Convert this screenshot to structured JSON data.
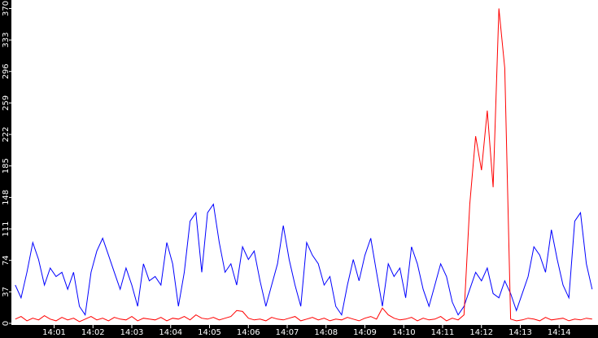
{
  "chart_data": {
    "type": "line",
    "x": [
      0,
      0.15,
      0.3,
      0.45,
      0.6,
      0.75,
      0.9,
      1.05,
      1.2,
      1.35,
      1.5,
      1.65,
      1.8,
      1.95,
      2.1,
      2.25,
      2.4,
      2.55,
      2.7,
      2.85,
      3.0,
      3.15,
      3.3,
      3.45,
      3.6,
      3.75,
      3.9,
      4.05,
      4.2,
      4.35,
      4.5,
      4.65,
      4.8,
      4.95,
      5.1,
      5.25,
      5.4,
      5.55,
      5.7,
      5.85,
      6.0,
      6.15,
      6.3,
      6.45,
      6.6,
      6.75,
      6.9,
      7.05,
      7.2,
      7.35,
      7.5,
      7.65,
      7.8,
      7.95,
      8.1,
      8.25,
      8.4,
      8.55,
      8.7,
      8.85,
      9.0,
      9.15,
      9.3,
      9.45,
      9.6,
      9.75,
      9.9,
      10.05,
      10.2,
      10.35,
      10.5,
      10.65,
      10.8,
      10.95,
      11.1,
      11.25,
      11.4,
      11.55,
      11.7,
      11.85,
      12.0,
      12.15,
      12.3,
      12.45,
      12.6,
      12.75,
      12.9,
      13.05,
      13.2,
      13.35,
      13.5,
      13.65,
      13.8,
      13.95,
      14.1,
      14.25,
      14.4,
      14.55,
      14.7,
      14.85
    ],
    "series": [
      {
        "color": "#0000ff",
        "values": [
          45,
          30,
          60,
          95,
          75,
          45,
          65,
          55,
          60,
          40,
          60,
          20,
          10,
          60,
          85,
          100,
          80,
          60,
          40,
          65,
          45,
          20,
          70,
          50,
          55,
          45,
          95,
          70,
          20,
          60,
          120,
          130,
          60,
          130,
          140,
          95,
          60,
          70,
          45,
          90,
          75,
          85,
          50,
          20,
          45,
          70,
          115,
          75,
          45,
          20,
          95,
          80,
          70,
          45,
          55,
          20,
          10,
          45,
          75,
          50,
          80,
          100,
          60,
          20,
          70,
          55,
          65,
          30,
          90,
          70,
          40,
          20,
          45,
          70,
          55,
          25,
          10,
          20,
          40,
          60,
          50,
          65,
          35,
          30,
          50,
          35,
          15,
          35,
          55,
          90,
          80,
          60,
          110,
          75,
          45,
          30,
          120,
          130,
          70,
          40
        ]
      },
      {
        "color": "#ff0000",
        "values": [
          5,
          8,
          3,
          6,
          4,
          9,
          5,
          3,
          7,
          4,
          6,
          2,
          5,
          8,
          4,
          6,
          3,
          7,
          5,
          4,
          8,
          3,
          6,
          5,
          4,
          7,
          3,
          6,
          5,
          8,
          4,
          10,
          6,
          5,
          7,
          4,
          6,
          8,
          15,
          14,
          6,
          4,
          5,
          3,
          7,
          5,
          4,
          6,
          8,
          3,
          5,
          7,
          4,
          6,
          3,
          5,
          4,
          7,
          5,
          3,
          6,
          8,
          5,
          18,
          10,
          6,
          4,
          5,
          7,
          3,
          6,
          4,
          5,
          8,
          3,
          6,
          4,
          10,
          140,
          220,
          180,
          250,
          160,
          370,
          300,
          5,
          3,
          4,
          6,
          5,
          3,
          7,
          4,
          5,
          6,
          3,
          5,
          4,
          6,
          5
        ]
      }
    ],
    "xlim": [
      -0.1,
      15
    ],
    "xticks": [
      {
        "value": 1,
        "label": "14:01"
      },
      {
        "value": 2,
        "label": "14:02"
      },
      {
        "value": 3,
        "label": "14:03"
      },
      {
        "value": 4,
        "label": "14:04"
      },
      {
        "value": 5,
        "label": "14:05"
      },
      {
        "value": 6,
        "label": "14:06"
      },
      {
        "value": 7,
        "label": "14:07"
      },
      {
        "value": 8,
        "label": "14:08"
      },
      {
        "value": 9,
        "label": "14:09"
      },
      {
        "value": 10,
        "label": "14:10"
      },
      {
        "value": 11,
        "label": "14:11"
      },
      {
        "value": 12,
        "label": "14:12"
      },
      {
        "value": 13,
        "label": "14:13"
      },
      {
        "value": 14,
        "label": "14:14"
      }
    ],
    "ylim": [
      0,
      380
    ],
    "yticks": [
      0,
      37,
      74,
      111,
      148,
      185,
      222,
      259,
      296,
      333,
      370
    ]
  }
}
